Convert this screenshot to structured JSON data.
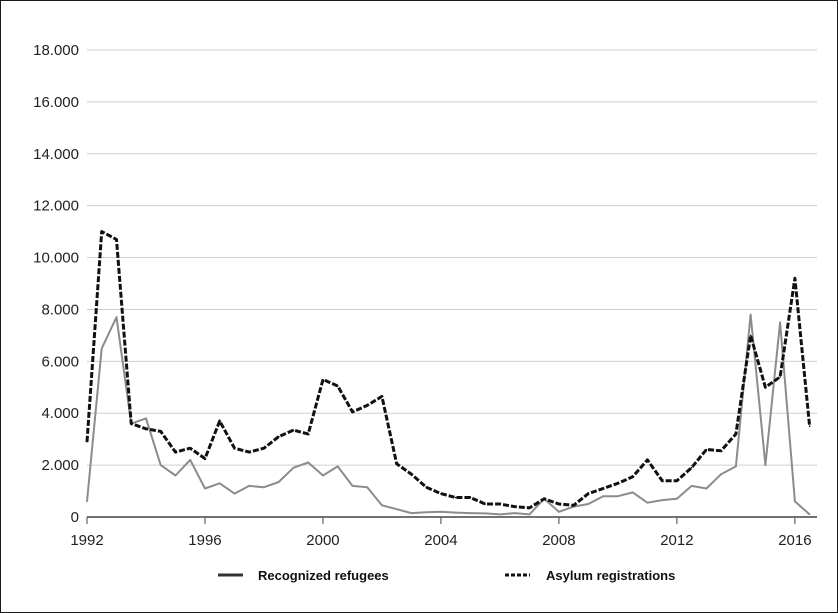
{
  "chart_data": {
    "type": "line",
    "title": "",
    "xlabel": "",
    "ylabel": "",
    "xlim": [
      1992,
      2016.75
    ],
    "ylim": [
      0,
      18000
    ],
    "x_ticks": [
      1992,
      1996,
      2000,
      2004,
      2008,
      2012,
      2016
    ],
    "x_tick_labels": [
      "1992",
      "1996",
      "2000",
      "2004",
      "2008",
      "2012",
      "2016"
    ],
    "y_ticks": [
      0,
      2000,
      4000,
      6000,
      8000,
      10000,
      12000,
      14000,
      16000,
      18000
    ],
    "y_tick_labels": [
      "0",
      "2.000",
      "4.000",
      "6.000",
      "8.000",
      "10.000",
      "12.000",
      "14.000",
      "16.000",
      "18.000"
    ],
    "grid": "horizontal",
    "legend_position": "bottom",
    "series": [
      {
        "name": "Recognized refugees",
        "style": "solid",
        "color": "#8c8c8c",
        "x": [
          1992,
          1992.5,
          1993,
          1993.5,
          1994,
          1994.5,
          1995,
          1995.5,
          1996,
          1996.5,
          1997,
          1997.5,
          1998,
          1998.5,
          1999,
          1999.5,
          2000,
          2000.5,
          2001,
          2001.5,
          2002,
          2002.5,
          2003,
          2003.5,
          2004,
          2004.5,
          2005,
          2005.5,
          2006,
          2006.5,
          2007,
          2007.5,
          2008,
          2008.5,
          2009,
          2009.5,
          2010,
          2010.5,
          2011,
          2011.5,
          2012,
          2012.5,
          2013,
          2013.5,
          2014,
          2014.5,
          2015,
          2015.5,
          2016,
          2016.5
        ],
        "values": [
          600,
          6500,
          7700,
          3600,
          3800,
          2000,
          1600,
          2200,
          1100,
          1300,
          900,
          1200,
          1150,
          1350,
          1900,
          2100,
          1600,
          1950,
          1200,
          1150,
          450,
          300,
          150,
          180,
          200,
          170,
          150,
          140,
          100,
          150,
          100,
          700,
          200,
          400,
          500,
          800,
          800,
          950,
          550,
          650,
          700,
          1200,
          1100,
          1650,
          1950,
          7800,
          2000,
          7500,
          600,
          100
        ]
      },
      {
        "name": "Asylum registrations",
        "style": "dashed",
        "color": "#111111",
        "x": [
          1992,
          1992.5,
          1993,
          1993.5,
          1994,
          1994.5,
          1995,
          1995.5,
          1996,
          1996.5,
          1997,
          1997.5,
          1998,
          1998.5,
          1999,
          1999.5,
          2000,
          2000.5,
          2001,
          2001.5,
          2002,
          2002.5,
          2003,
          2003.5,
          2004,
          2004.5,
          2005,
          2005.5,
          2006,
          2006.5,
          2007,
          2007.5,
          2008,
          2008.5,
          2009,
          2009.5,
          2010,
          2010.5,
          2011,
          2011.5,
          2012,
          2012.5,
          2013,
          2013.5,
          2014,
          2014.5,
          2015,
          2015.5,
          2016,
          2016.5
        ],
        "values": [
          2900,
          11000,
          10700,
          3600,
          3400,
          3300,
          2500,
          2650,
          2250,
          3700,
          2650,
          2500,
          2650,
          3100,
          3350,
          3200,
          5300,
          5050,
          4050,
          4300,
          4650,
          2050,
          1650,
          1150,
          900,
          750,
          750,
          500,
          500,
          400,
          350,
          700,
          500,
          450,
          900,
          1100,
          1300,
          1550,
          2200,
          1400,
          1400,
          1900,
          2600,
          2550,
          3200,
          7000,
          5000,
          5400,
          9200,
          3500
        ]
      }
    ]
  }
}
